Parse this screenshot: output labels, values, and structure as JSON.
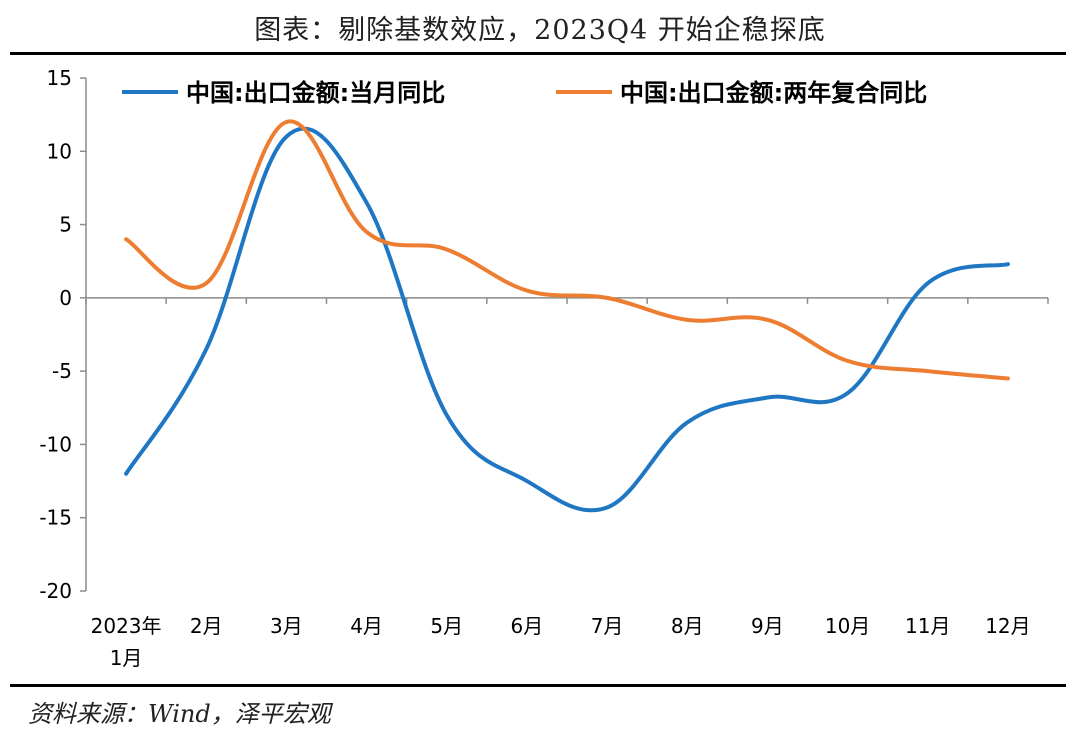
{
  "header": {
    "title": "图表：剔除基数效应，2023Q4 开始企稳探底"
  },
  "footer": {
    "source": "资料来源：Wind，泽平宏观"
  },
  "chart_data": {
    "type": "line",
    "title": "图表：剔除基数效应，2023Q4 开始企稳探底",
    "categories": [
      "2023年\n1月",
      "2月",
      "3月",
      "4月",
      "5月",
      "6月",
      "7月",
      "8月",
      "9月",
      "10月",
      "11月",
      "12月"
    ],
    "x_tick_labels": [
      [
        "2023年",
        "1月"
      ],
      [
        "2月"
      ],
      [
        "3月"
      ],
      [
        "4月"
      ],
      [
        "5月"
      ],
      [
        "6月"
      ],
      [
        "7月"
      ],
      [
        "8月"
      ],
      [
        "9月"
      ],
      [
        "10月"
      ],
      [
        "11月"
      ],
      [
        "12月"
      ]
    ],
    "ylim": [
      -20,
      15
    ],
    "yticks": [
      15,
      10,
      5,
      0,
      -5,
      -10,
      -15,
      -20
    ],
    "legend_position": "top",
    "grid": false,
    "series": [
      {
        "name": "中国:出口金额:当月同比",
        "color": "#1f77c4",
        "values": [
          -12.0,
          -3.5,
          11.0,
          6.5,
          -8.0,
          -12.5,
          -14.3,
          -8.5,
          -6.8,
          -6.5,
          1.0,
          2.3
        ]
      },
      {
        "name": "中国:出口金额:两年复合同比",
        "color": "#ed7d31",
        "values": [
          4.0,
          1.0,
          12.0,
          4.5,
          3.3,
          0.5,
          0.0,
          -1.5,
          -1.5,
          -4.3,
          -5.0,
          -5.5
        ]
      }
    ]
  }
}
